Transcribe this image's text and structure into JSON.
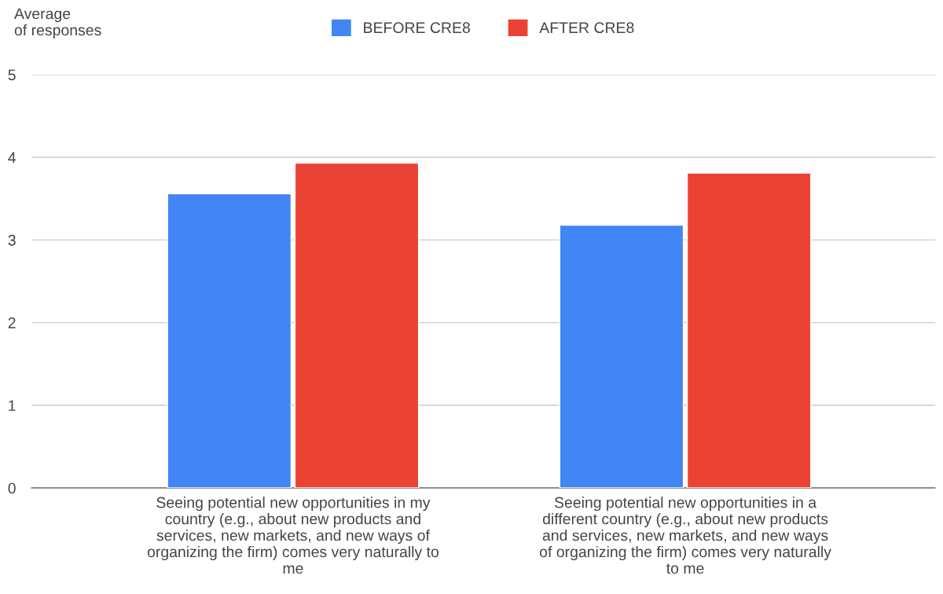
{
  "chart_data": {
    "type": "bar",
    "ylabel": "Average\nof responses",
    "categories": [
      "Seeing potential new opportunities in my\ncountry (e.g., about new products and\nservices, new markets, and new ways of\norganizing the firm) comes very naturally to\nme",
      "Seeing potential new opportunities in a\ndifferent country (e.g., about new products\nand services, new markets, and new ways\nof organizing the firm) comes very naturally\nto me"
    ],
    "series": [
      {
        "name": "BEFORE CRE8",
        "color": "#4285f4",
        "values": [
          3.56,
          3.18
        ]
      },
      {
        "name": "AFTER CRE8",
        "color": "#ea4335",
        "values": [
          3.93,
          3.81
        ]
      }
    ],
    "ylim": [
      0,
      5
    ],
    "yticks": [
      0,
      1,
      2,
      3,
      4,
      5
    ],
    "grid": "y",
    "legend": "top"
  }
}
